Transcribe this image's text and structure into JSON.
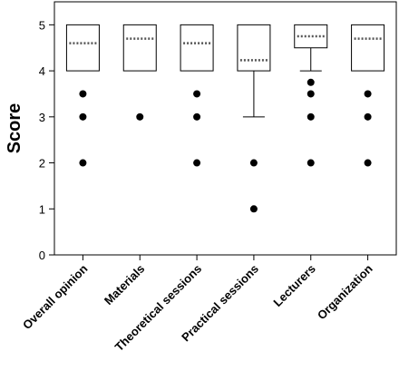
{
  "chart_data": {
    "type": "box",
    "ylabel": "Score",
    "xlabel": "",
    "ylim": [
      0,
      5.5
    ],
    "yticks": [
      0,
      1,
      2,
      3,
      4,
      5
    ],
    "categories": [
      "Overall opinion",
      "Materials",
      "Theoretical sessions",
      "Practical sessions",
      "Lecturers",
      "Organization"
    ],
    "boxes": [
      {
        "q1": 4,
        "q3": 5,
        "mean": 4.6,
        "whisker_low": 4,
        "whisker_high": 5,
        "outliers": [
          3.5,
          3,
          2
        ]
      },
      {
        "q1": 4,
        "q3": 5,
        "mean": 4.7,
        "whisker_low": 4,
        "whisker_high": 5,
        "outliers": [
          3
        ]
      },
      {
        "q1": 4,
        "q3": 5,
        "mean": 4.6,
        "whisker_low": 4,
        "whisker_high": 5,
        "outliers": [
          3.5,
          3,
          2
        ]
      },
      {
        "q1": 4,
        "q3": 5,
        "mean": 4.23,
        "whisker_low": 3,
        "whisker_high": 5,
        "outliers": [
          2,
          1
        ]
      },
      {
        "q1": 4.5,
        "q3": 5,
        "mean": 4.75,
        "whisker_low": 4,
        "whisker_high": 5,
        "outliers": [
          3.75,
          3.5,
          3,
          2
        ]
      },
      {
        "q1": 4,
        "q3": 5,
        "mean": 4.7,
        "whisker_low": 4,
        "whisker_high": 5,
        "outliers": [
          3.5,
          3,
          2
        ]
      }
    ],
    "mean_line_style": "dotted",
    "grid": false,
    "legend": "none"
  }
}
